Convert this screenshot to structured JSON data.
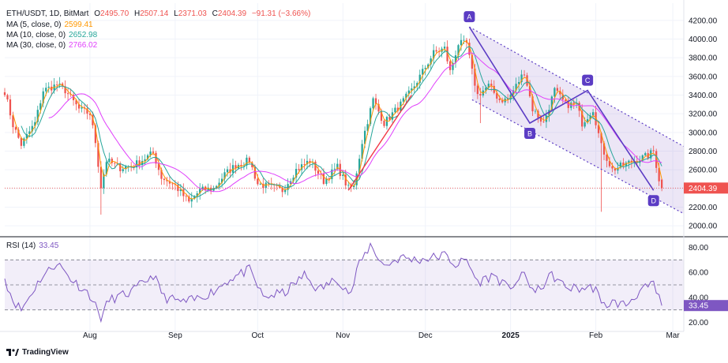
{
  "chart_data": [
    {
      "type": "candlestick",
      "legend": {
        "symbol": "ETH/USDT, 1D, BitMart",
        "open_label": "O",
        "open": "2495.70",
        "high_label": "H",
        "high": "2507.14",
        "low_label": "L",
        "low": "2371.03",
        "close_label": "C",
        "close": "2404.39",
        "change": "−91.31 (−3.66%)",
        "ma5_label": "MA (5, close, 0)",
        "ma5": "2599.41",
        "ma10_label": "MA (10, close, 0)",
        "ma10": "2652.98",
        "ma30_label": "MA (30, close, 0)",
        "ma30": "2766.02"
      },
      "price_axis": {
        "ylim": [
          1900,
          4300
        ],
        "ticks": [
          "4200.00",
          "4000.00",
          "3800.00",
          "3600.00",
          "3400.00",
          "3200.00",
          "3000.00",
          "2800.00",
          "2600.00",
          "2400.00",
          "2200.00",
          "2000.00"
        ],
        "current_price": 2404.39
      },
      "time_axis": {
        "start": "2024-07-01",
        "end": "2025-03-05",
        "labels": [
          {
            "t": "2024-08-01",
            "text": "Aug"
          },
          {
            "t": "2024-09-01",
            "text": "Sep"
          },
          {
            "t": "2024-10-01",
            "text": "Oct"
          },
          {
            "t": "2024-11-01",
            "text": "Nov"
          },
          {
            "t": "2024-12-01",
            "text": "Dec"
          },
          {
            "t": "2025-01-01",
            "text": "2025",
            "bold": true
          },
          {
            "t": "2025-02-01",
            "text": "Feb"
          },
          {
            "t": "2025-03-01",
            "text": "Mar"
          }
        ]
      },
      "close_path": [
        [
          "2024-07-01",
          3440
        ],
        [
          "2024-07-04",
          3080
        ],
        [
          "2024-07-07",
          2870
        ],
        [
          "2024-07-12",
          3100
        ],
        [
          "2024-07-15",
          3450
        ],
        [
          "2024-07-20",
          3510
        ],
        [
          "2024-07-23",
          3450
        ],
        [
          "2024-07-28",
          3250
        ],
        [
          "2024-08-01",
          3200
        ],
        [
          "2024-08-03",
          2900
        ],
        [
          "2024-08-05",
          2420
        ],
        [
          "2024-08-07",
          2700
        ],
        [
          "2024-08-12",
          2620
        ],
        [
          "2024-08-17",
          2650
        ],
        [
          "2024-08-24",
          2780
        ],
        [
          "2024-08-27",
          2520
        ],
        [
          "2024-09-01",
          2430
        ],
        [
          "2024-09-06",
          2250
        ],
        [
          "2024-09-10",
          2380
        ],
        [
          "2024-09-15",
          2400
        ],
        [
          "2024-09-19",
          2550
        ],
        [
          "2024-09-23",
          2650
        ],
        [
          "2024-09-28",
          2700
        ],
        [
          "2024-10-01",
          2450
        ],
        [
          "2024-10-05",
          2420
        ],
        [
          "2024-10-10",
          2380
        ],
        [
          "2024-10-15",
          2600
        ],
        [
          "2024-10-20",
          2700
        ],
        [
          "2024-10-25",
          2480
        ],
        [
          "2024-10-30",
          2630
        ],
        [
          "2024-11-03",
          2400
        ],
        [
          "2024-11-05",
          2420
        ],
        [
          "2024-11-08",
          2900
        ],
        [
          "2024-11-12",
          3350
        ],
        [
          "2024-11-16",
          3100
        ],
        [
          "2024-11-22",
          3300
        ],
        [
          "2024-11-26",
          3450
        ],
        [
          "2024-11-30",
          3650
        ],
        [
          "2024-12-04",
          3850
        ],
        [
          "2024-12-08",
          3900
        ],
        [
          "2024-12-10",
          3650
        ],
        [
          "2024-12-13",
          3950
        ],
        [
          "2024-12-16",
          3950
        ],
        [
          "2024-12-18",
          3650
        ],
        [
          "2024-12-20",
          3400
        ],
        [
          "2024-12-24",
          3500
        ],
        [
          "2024-12-28",
          3350
        ],
        [
          "2024-12-31",
          3350
        ],
        [
          "2025-01-06",
          3650
        ],
        [
          "2025-01-09",
          3250
        ],
        [
          "2025-01-13",
          3100
        ],
        [
          "2025-01-17",
          3450
        ],
        [
          "2025-01-21",
          3300
        ],
        [
          "2025-01-25",
          3300
        ],
        [
          "2025-01-27",
          3100
        ],
        [
          "2025-01-31",
          3250
        ],
        [
          "2025-02-03",
          2850
        ],
        [
          "2025-02-07",
          2600
        ],
        [
          "2025-02-11",
          2650
        ],
        [
          "2025-02-15",
          2700
        ],
        [
          "2025-02-20",
          2750
        ],
        [
          "2025-02-22",
          2800
        ],
        [
          "2025-02-24",
          2500
        ],
        [
          "2025-02-25",
          2404
        ]
      ],
      "low_wicks": [
        [
          "2024-08-05",
          2120
        ],
        [
          "2025-02-03",
          2150
        ],
        [
          "2024-12-21",
          3100
        ]
      ],
      "ma_series": [
        {
          "name": "MA5",
          "color": "#FF9800",
          "smooth": 3
        },
        {
          "name": "MA10",
          "color": "#26A69A",
          "smooth": 6
        },
        {
          "name": "MA30",
          "color": "#E040FB",
          "smooth": 16
        }
      ],
      "annotations": {
        "channel": {
          "top": [
            [
              "2024-12-17",
              4130
            ],
            [
              "2025-03-05",
              2850
            ]
          ],
          "bottom": [
            [
              "2024-12-18",
              3350
            ],
            [
              "2025-03-05",
              2130
            ]
          ]
        },
        "red_trend": [
          [
            "2024-11-03",
            2380
          ],
          [
            "2024-11-26",
            3400
          ]
        ],
        "abcd": [
          {
            "t": "2024-12-17",
            "p": 4130,
            "label": "A",
            "pos": "above"
          },
          {
            "t": "2025-01-08",
            "p": 3100,
            "label": "B",
            "pos": "below"
          },
          {
            "t": "2025-01-29",
            "p": 3450,
            "label": "C",
            "pos": "above"
          },
          {
            "t": "2025-02-22",
            "p": 2380,
            "label": "D",
            "pos": "below"
          }
        ],
        "abcd_color": "#5B3CC4"
      },
      "colors": {
        "up": "#26A69A",
        "down": "#EF5350"
      }
    },
    {
      "type": "line",
      "title": "RSI (14)",
      "value": "33.45",
      "ylim": [
        14,
        86
      ],
      "ticks": [
        "80.00",
        "60.00",
        "40.00",
        "20.00"
      ],
      "bands": [
        70,
        50,
        30
      ],
      "path": [
        [
          "2024-07-01",
          55
        ],
        [
          "2024-07-04",
          38
        ],
        [
          "2024-07-07",
          30
        ],
        [
          "2024-07-14",
          55
        ],
        [
          "2024-07-20",
          68
        ],
        [
          "2024-07-25",
          55
        ],
        [
          "2024-08-01",
          42
        ],
        [
          "2024-08-05",
          24
        ],
        [
          "2024-08-08",
          38
        ],
        [
          "2024-08-16",
          44
        ],
        [
          "2024-08-24",
          58
        ],
        [
          "2024-08-28",
          40
        ],
        [
          "2024-09-04",
          36
        ],
        [
          "2024-09-08",
          38
        ],
        [
          "2024-09-15",
          45
        ],
        [
          "2024-09-21",
          55
        ],
        [
          "2024-09-28",
          62
        ],
        [
          "2024-10-03",
          40
        ],
        [
          "2024-10-11",
          44
        ],
        [
          "2024-10-18",
          58
        ],
        [
          "2024-10-23",
          46
        ],
        [
          "2024-10-30",
          55
        ],
        [
          "2024-11-04",
          42
        ],
        [
          "2024-11-06",
          62
        ],
        [
          "2024-11-11",
          82
        ],
        [
          "2024-11-16",
          65
        ],
        [
          "2024-11-22",
          72
        ],
        [
          "2024-11-28",
          70
        ],
        [
          "2024-12-04",
          72
        ],
        [
          "2024-12-08",
          74
        ],
        [
          "2024-12-12",
          66
        ],
        [
          "2024-12-16",
          70
        ],
        [
          "2024-12-20",
          52
        ],
        [
          "2024-12-26",
          58
        ],
        [
          "2024-12-31",
          47
        ],
        [
          "2025-01-06",
          58
        ],
        [
          "2025-01-10",
          43
        ],
        [
          "2025-01-16",
          58
        ],
        [
          "2025-01-21",
          48
        ],
        [
          "2025-01-26",
          47
        ],
        [
          "2025-02-01",
          48
        ],
        [
          "2025-02-03",
          33
        ],
        [
          "2025-02-07",
          36
        ],
        [
          "2025-02-12",
          34
        ],
        [
          "2025-02-17",
          45
        ],
        [
          "2025-02-22",
          50
        ],
        [
          "2025-02-25",
          33.45
        ]
      ],
      "color": "#7E57C2"
    }
  ],
  "branding": {
    "logo_text": "TradingView"
  }
}
